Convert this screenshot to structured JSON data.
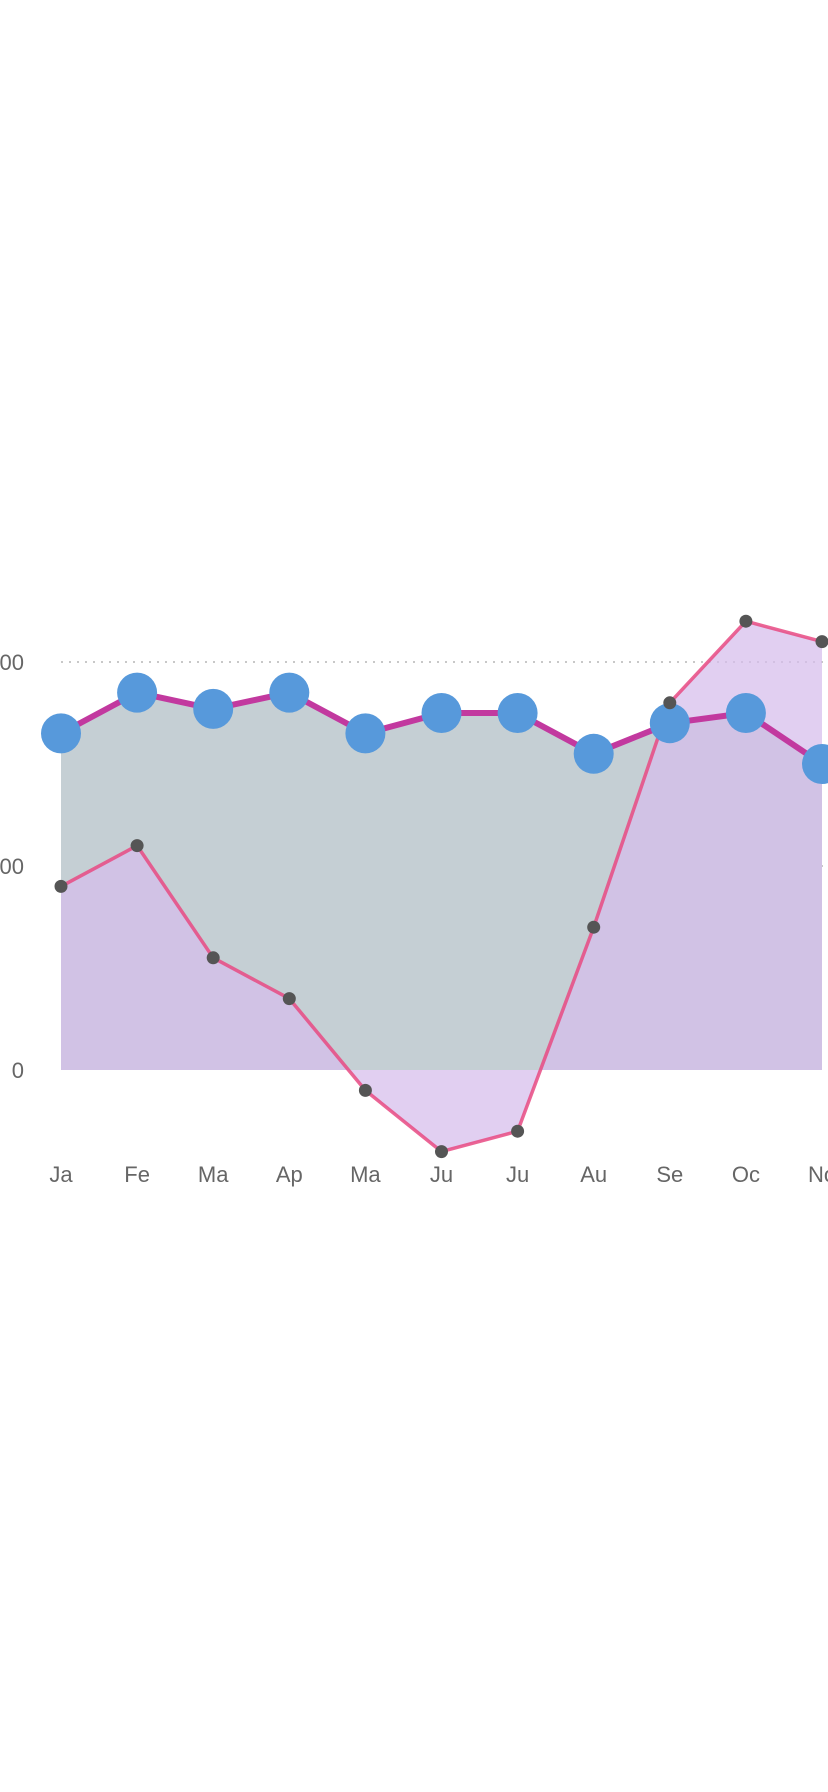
{
  "chart_data": {
    "type": "area",
    "title": "",
    "xlabel": "",
    "ylabel": "",
    "categories": [
      "Ja",
      "Fe",
      "Ma",
      "Ap",
      "Ma",
      "Ju",
      "Ju",
      "Au",
      "Se",
      "Oc",
      "No"
    ],
    "series": [
      {
        "values": [
          165,
          185,
          177,
          185,
          165,
          175,
          175,
          155,
          170,
          175,
          150
        ],
        "line_color": "#c2399f",
        "fill_color": "#c5cfd4",
        "marker_color": "#5799db",
        "marker": "large-circle"
      },
      {
        "values": [
          90,
          110,
          55,
          35,
          -10,
          -40,
          -30,
          70,
          180,
          220,
          210
        ],
        "line_color": "#e84a82",
        "fill_color": "#d6bdec",
        "marker_color": "#555555",
        "marker": "small-circle"
      }
    ],
    "y_ticks": [
      {
        "value": 0,
        "label": "0"
      },
      {
        "value": 100,
        "label": "00"
      },
      {
        "value": 200,
        "label": "00"
      }
    ],
    "ylim": [
      -40,
      220
    ],
    "grid": true
  }
}
